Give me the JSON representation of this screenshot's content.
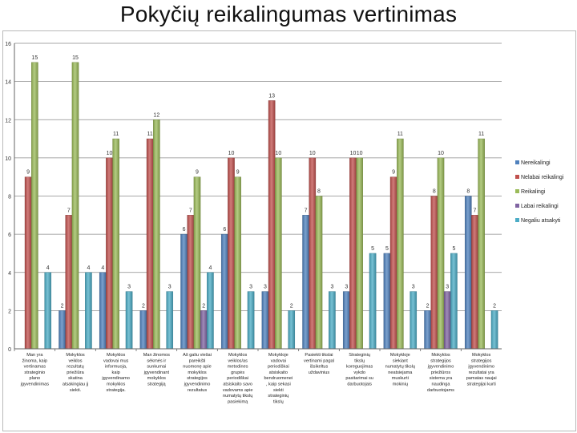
{
  "page": {
    "title": "Pokyčių reikalingumas vertinimas"
  },
  "colors": {
    "nereikalingi": "#4f81bd",
    "nelabai": "#c0504d",
    "reikalingi": "#9bbb59",
    "labai": "#8064a2",
    "negaliu": "#4bacc6"
  },
  "chart_data": {
    "type": "bar",
    "ylim": [
      0,
      16
    ],
    "yticks": [
      0,
      2,
      4,
      6,
      8,
      10,
      12,
      14,
      16
    ],
    "grid": true,
    "legend_position": "right",
    "categories": [
      [
        "Man yra",
        "žinoma, kaip",
        "vertinamas",
        "strateginio",
        "plano",
        "įgyvendinimas"
      ],
      [
        "Mokyklos",
        "veiklos",
        "rezultatų",
        "priežiūra",
        "skatina",
        "atsakingiau jį",
        "siekti."
      ],
      [
        "Mokyklos",
        "vadovai mus",
        "informuoja,",
        "kaip",
        "įgyvendinamo",
        "mokyklos",
        "strategija."
      ],
      [
        "Man žinomos",
        "sėkmės ir",
        "sunkumai",
        "įgyvendinant",
        "mokyklos",
        "strategiją"
      ],
      [
        "Aš galiu viešai",
        "pareikšti",
        "nuomonę apie",
        "mokyklos",
        "strategijos",
        "įgyvendinimo",
        "rezultatus"
      ],
      [
        "Mokyklos",
        "veiklos/as",
        "metodines",
        "grupės",
        "periodiškai",
        "atsiskaito savo",
        "vadovams apie",
        "numatytų tikslų",
        "pasiekimą"
      ],
      [
        "Mokykloje",
        "vadovai",
        "periodiškai",
        "atsiskaito",
        "bendruomenei",
        ", kaip sekasi",
        "siekti",
        "strateginių",
        "tikslų"
      ],
      [
        "Pasiekti tikslai",
        "vertinami pagal",
        "išsikeltus",
        "uždavinius"
      ],
      [
        "Strateginių",
        "tikslų",
        "koreguojimas",
        "vykdo",
        "pasitarimai su",
        "darbuotojais"
      ],
      [
        "Mokykloje",
        "siekiant",
        "numatytų tikslų",
        "neatsiejama",
        "muskurti",
        "mokinių"
      ],
      [
        "Mokyklos",
        "strategijos",
        "įgyvendinimo",
        "priežiūros",
        "sistema yra",
        "naudinga",
        "darbuotojams"
      ],
      [
        "Mokyklos",
        "strategijos",
        "įgyvendinimo",
        "rezultatai yra",
        "pamatas naujai",
        "strategijai kurti"
      ]
    ],
    "series": [
      {
        "name": "Nereikalingi",
        "values": [
          0,
          2,
          4,
          2,
          6,
          6,
          3,
          7,
          3,
          5,
          2,
          8
        ]
      },
      {
        "name": "Nelabai reikalingi",
        "values": [
          9,
          7,
          10,
          11,
          7,
          10,
          13,
          10,
          10,
          9,
          8,
          7
        ]
      },
      {
        "name": "Reikalingi",
        "values": [
          15,
          15,
          11,
          12,
          9,
          9,
          10,
          8,
          10,
          11,
          10,
          11
        ]
      },
      {
        "name": "Labai reikalingi",
        "values": [
          0,
          0,
          0,
          0,
          2,
          0,
          0,
          0,
          0,
          0,
          3,
          0
        ]
      },
      {
        "name": "Negaliu atsakyti",
        "values": [
          4,
          4,
          3,
          3,
          4,
          3,
          2,
          3,
          5,
          3,
          5,
          2
        ]
      }
    ]
  }
}
